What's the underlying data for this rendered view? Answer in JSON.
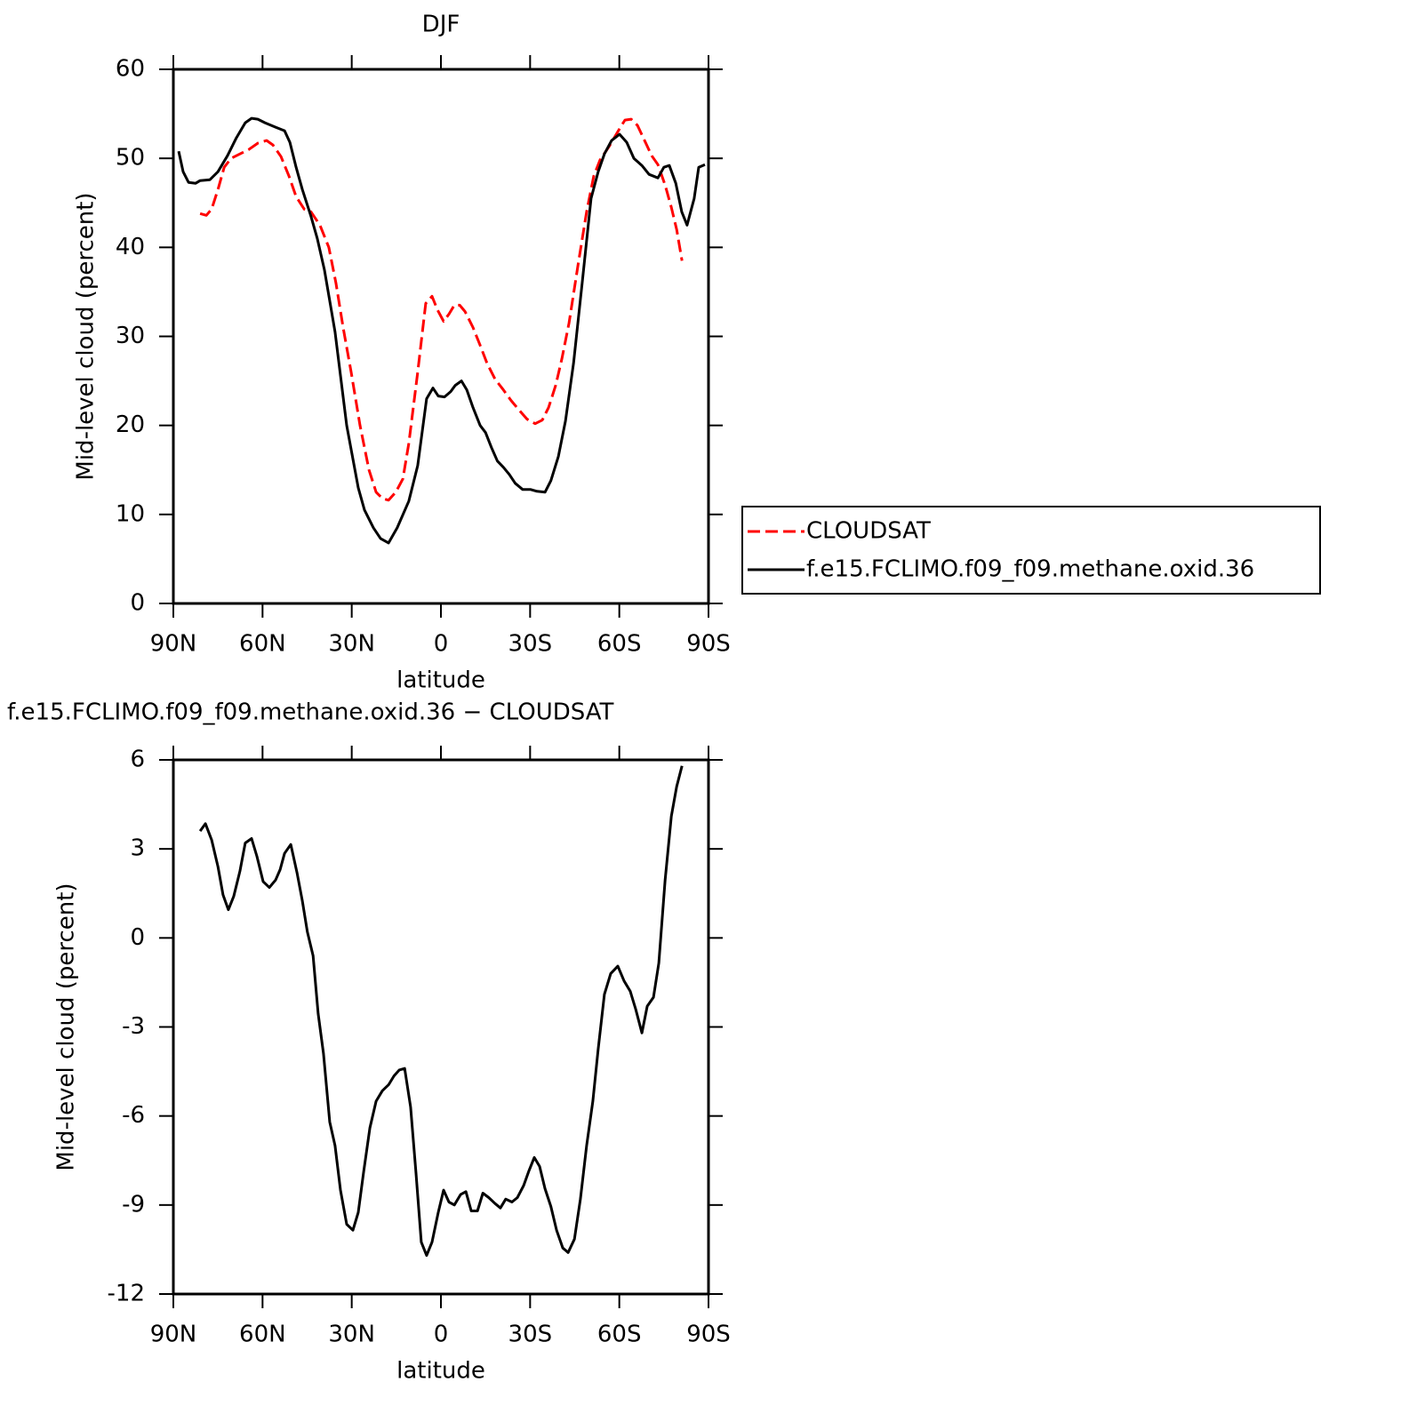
{
  "chart_data": [
    {
      "type": "line",
      "title": "DJF",
      "xlabel": "latitude",
      "ylabel": "Mid-level cloud (percent)",
      "xlim": [
        90,
        -90
      ],
      "ylim": [
        0,
        60
      ],
      "xticks": [
        {
          "value": 90,
          "label": "90N"
        },
        {
          "value": 60,
          "label": "60N"
        },
        {
          "value": 30,
          "label": "30N"
        },
        0,
        {
          "value": -30,
          "label": "30S"
        },
        {
          "value": -60,
          "label": "60S"
        },
        {
          "value": -90,
          "label": "90S"
        }
      ],
      "yticks": [
        0,
        10,
        20,
        30,
        40,
        50,
        60
      ],
      "legend": "right",
      "series": [
        {
          "name": "CLOUDSAT",
          "color": "#ff0000",
          "line_style": "dashed",
          "x": [
            81,
            78.9,
            77.1,
            75,
            72.9,
            70.6,
            67.6,
            64.6,
            61.6,
            58.6,
            56.5,
            53.8,
            51.1,
            48.7,
            46,
            43.7,
            40.7,
            37.7,
            35.3,
            32.9,
            30.2,
            27.2,
            24.2,
            21.8,
            19.7,
            17.6,
            15.2,
            12.8,
            10.8,
            7.8,
            5.1,
            3,
            1.2,
            -0.9,
            -2.7,
            -4.5,
            -6.3,
            -8.1,
            -10.8,
            -13.2,
            -15.5,
            -18.2,
            -21,
            -23.6,
            -26.6,
            -29,
            -31.7,
            -34.1,
            -36.2,
            -38.6,
            -40.7,
            -43.1,
            -46.1,
            -49,
            -51.4,
            -53.5,
            -56.5,
            -59.5,
            -61.9,
            -64,
            -66.1,
            -68.5,
            -70.9,
            -73,
            -75.4,
            -77.5,
            -79.3,
            -81.1
          ],
          "values": [
            43.8,
            43.6,
            44.3,
            46.5,
            49,
            50,
            50.5,
            51,
            51.7,
            52,
            51.5,
            50.2,
            48,
            45.7,
            44.3,
            44,
            42.5,
            40,
            36,
            31,
            26,
            20,
            15,
            12.5,
            11.8,
            11.6,
            12.5,
            14,
            18,
            26,
            33.7,
            34.5,
            33,
            31.7,
            32.5,
            33.5,
            33.5,
            32.8,
            31,
            29,
            27,
            25.2,
            24,
            22.8,
            21.6,
            20.7,
            20.2,
            20.6,
            22,
            24.5,
            27.5,
            31.5,
            38,
            44,
            48,
            49.8,
            51.3,
            53,
            54.3,
            54.4,
            53.7,
            52,
            50.3,
            49.3,
            47,
            44.5,
            42,
            38.5
          ]
        },
        {
          "name": "f.e15.FCLIMO.f09_f09.methane.oxid.36",
          "color": "#000000",
          "line_style": "solid",
          "x": [
            88.2,
            86.7,
            84.9,
            82.5,
            81,
            77.7,
            75,
            71.8,
            68.8,
            65.8,
            63.7,
            61.6,
            59.2,
            55.6,
            52.6,
            50.8,
            48.7,
            46.6,
            43.7,
            41.6,
            39.2,
            37.4,
            35.6,
            31.7,
            27.8,
            25.7,
            22.7,
            20.3,
            17.6,
            14.7,
            10.8,
            7.8,
            4.8,
            2.7,
            0.9,
            -1.2,
            -3.3,
            -4.8,
            -6.9,
            -8.7,
            -10.8,
            -13.2,
            -15,
            -17,
            -19,
            -21,
            -23,
            -25,
            -27.5,
            -30.2,
            -32.3,
            -35,
            -37,
            -39.5,
            -41.9,
            -44.6,
            -47.5,
            -50.5,
            -52.9,
            -55,
            -57.4,
            -60.1,
            -62.5,
            -64.9,
            -67.6,
            -70,
            -73,
            -75,
            -76.8,
            -79,
            -81,
            -82.8,
            -85.2,
            -86.7,
            -88.8
          ],
          "values": [
            50.8,
            48.5,
            47.3,
            47.2,
            47.5,
            47.6,
            48.5,
            50.3,
            52.3,
            54,
            54.5,
            54.4,
            54,
            53.5,
            53.1,
            51.8,
            49,
            46.5,
            43.5,
            41,
            37.5,
            34,
            30.5,
            20,
            13,
            10.5,
            8.5,
            7.3,
            6.8,
            8.5,
            11.5,
            15.5,
            23,
            24.2,
            23.3,
            23.2,
            23.8,
            24.5,
            25,
            24,
            22,
            20,
            19.2,
            17.5,
            16,
            15.3,
            14.5,
            13.5,
            12.8,
            12.8,
            12.6,
            12.5,
            13.8,
            16.5,
            20.5,
            27,
            36,
            45.5,
            48.5,
            50.5,
            52,
            52.7,
            51.8,
            50,
            49.2,
            48.2,
            47.8,
            49,
            49.2,
            47.2,
            44,
            42.5,
            45.5,
            49,
            49.3
          ]
        }
      ]
    },
    {
      "type": "line",
      "title": "f.e15.FCLIMO.f09_f09.methane.oxid.36 − CLOUDSAT",
      "xlabel": "latitude",
      "ylabel": "Mid-level cloud (percent)",
      "xlim": [
        90,
        -90
      ],
      "ylim": [
        -12,
        6
      ],
      "xticks": [
        {
          "value": 90,
          "label": "90N"
        },
        {
          "value": 60,
          "label": "60N"
        },
        {
          "value": 30,
          "label": "30N"
        },
        0,
        {
          "value": -30,
          "label": "30S"
        },
        {
          "value": -60,
          "label": "60S"
        },
        {
          "value": -90,
          "label": "90S"
        }
      ],
      "yticks": [
        -12,
        -9,
        -6,
        -3,
        0,
        3,
        6
      ],
      "series": [
        {
          "color": "#000000",
          "line_style": "solid",
          "x": [
            81,
            79.2,
            77.1,
            75,
            73.3,
            71.5,
            69.7,
            67.6,
            65.8,
            63.7,
            61.9,
            59.8,
            57.7,
            55.6,
            54.1,
            52.6,
            50.5,
            48.4,
            46.6,
            44.9,
            43,
            41.3,
            39.5,
            37.4,
            35.6,
            33.8,
            31.7,
            29.6,
            27.8,
            26,
            23.9,
            21.8,
            19.7,
            17.6,
            15.8,
            14,
            12.2,
            10.2,
            8.4,
            6.6,
            4.8,
            3,
            0.9,
            -0.9,
            -2.7,
            -4.5,
            -6.6,
            -8.4,
            -10.2,
            -12.3,
            -14.1,
            -16.1,
            -18.2,
            -20,
            -21.8,
            -23.9,
            -25.7,
            -27.8,
            -29.6,
            -31.4,
            -33.2,
            -35,
            -37,
            -38.9,
            -41,
            -42.8,
            -44.9,
            -46.9,
            -49,
            -51.1,
            -52.9,
            -55,
            -57.1,
            -59.5,
            -61.6,
            -63.7,
            -65.5,
            -67.6,
            -69.4,
            -71.5,
            -73.3,
            -75.4,
            -77.5,
            -79.3,
            -81.1
          ],
          "values": [
            3.6,
            3.85,
            3.3,
            2.4,
            1.45,
            0.95,
            1.4,
            2.25,
            3.2,
            3.35,
            2.75,
            1.9,
            1.7,
            1.95,
            2.3,
            2.85,
            3.15,
            2.2,
            1.25,
            0.2,
            -0.6,
            -2.55,
            -3.9,
            -6.2,
            -7,
            -8.5,
            -9.65,
            -9.85,
            -9.25,
            -7.9,
            -6.4,
            -5.5,
            -5.15,
            -4.95,
            -4.65,
            -4.45,
            -4.4,
            -5.7,
            -7.9,
            -10.25,
            -10.7,
            -10.25,
            -9.25,
            -8.5,
            -8.9,
            -9,
            -8.65,
            -8.55,
            -9.2,
            -9.2,
            -8.6,
            -8.75,
            -8.95,
            -9.1,
            -8.8,
            -8.9,
            -8.75,
            -8.35,
            -7.85,
            -7.4,
            -7.7,
            -8.45,
            -9.05,
            -9.85,
            -10.45,
            -10.6,
            -10.15,
            -8.8,
            -7,
            -5.5,
            -3.75,
            -1.9,
            -1.2,
            -0.95,
            -1.45,
            -1.8,
            -2.4,
            -3.2,
            -2.3,
            -2,
            -0.85,
            1.95,
            4.1,
            5.1,
            5.8
          ]
        }
      ]
    }
  ]
}
